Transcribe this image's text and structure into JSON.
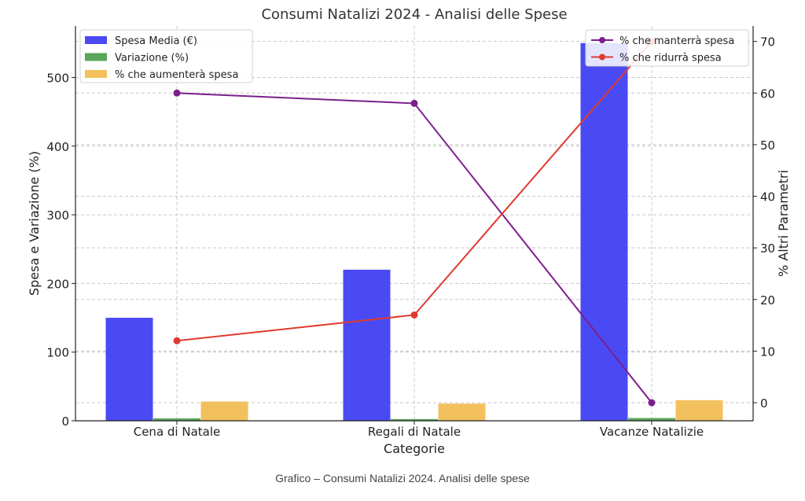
{
  "chart_data": {
    "type": "bar",
    "title": "Consumi Natalizi 2024 - Analisi delle Spese",
    "xlabel": "Categorie",
    "ylabel": "Spesa e Variazione (%)",
    "y2label": "% Altri Parametri",
    "categories": [
      "Cena di Natale",
      "Regali di Natale",
      "Vacanze Natalizie"
    ],
    "ylim": [
      0,
      575
    ],
    "y2lim": [
      -3.5,
      73
    ],
    "yticks": [
      0,
      100,
      200,
      300,
      400,
      500
    ],
    "y2ticks": [
      0,
      10,
      20,
      30,
      40,
      50,
      60,
      70
    ],
    "grid": true,
    "bar_series": [
      {
        "name": "Spesa Media (€)",
        "values": [
          150,
          220,
          550
        ],
        "color": "#4a4af4"
      },
      {
        "name": "Variazione (%)",
        "values": [
          3.5,
          2.5,
          4
        ],
        "color": "#5aa55a"
      },
      {
        "name": "% che aumenterà spesa",
        "values": [
          28,
          25,
          30
        ],
        "color": "#f2c15e"
      }
    ],
    "line_series": [
      {
        "name": "% che manterrà spesa",
        "values": [
          60,
          58,
          0
        ],
        "color": "#7b1f8c",
        "axis": "right"
      },
      {
        "name": "% che ridurrà spesa",
        "values": [
          12,
          17,
          70
        ],
        "color": "#e03a2f",
        "axis": "right"
      }
    ],
    "legend_left_position": "top-left",
    "legend_right_position": "top-right"
  },
  "caption": "Grafico – Consumi Natalizi 2024. Analisi delle spese"
}
